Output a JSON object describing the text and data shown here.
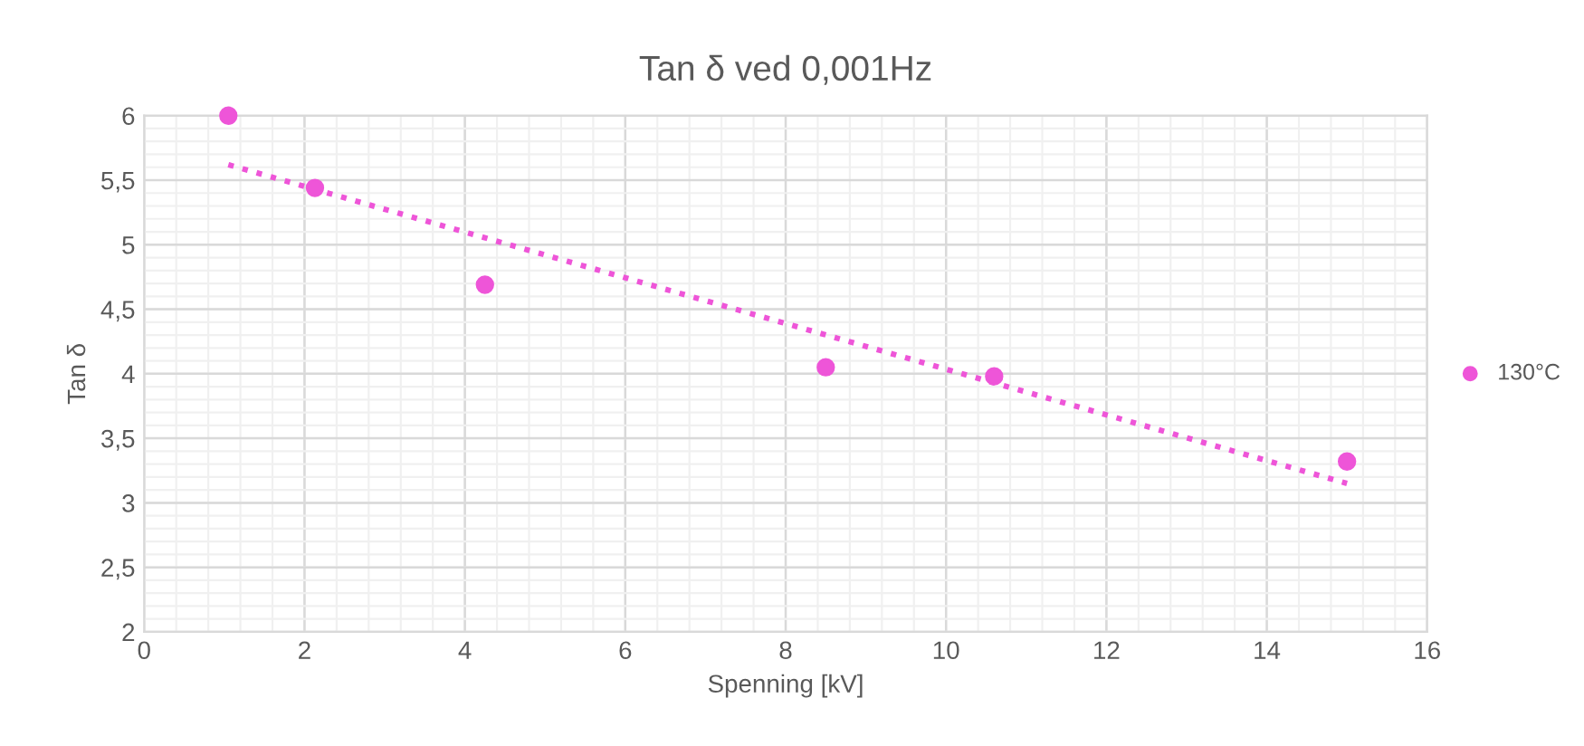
{
  "chart_data": {
    "type": "scatter",
    "title": "Tan δ ved 0,001Hz",
    "xlabel": "Spenning [kV]",
    "ylabel": "Tan δ",
    "series": [
      {
        "name": "130°C",
        "color": "#ee55d8",
        "x": [
          1.05,
          2.13,
          4.25,
          8.5,
          10.6,
          15
        ],
        "values": [
          6.0,
          5.44,
          4.69,
          4.05,
          3.98,
          3.32
        ]
      },
      {
        "type": "line",
        "color": "#ee55d8",
        "line_style": "dotted",
        "marker": "none",
        "x": [
          1.05,
          15
        ],
        "values": [
          5.62,
          3.15
        ]
      }
    ],
    "xlim": [
      0,
      16
    ],
    "xticks": [
      0,
      2,
      4,
      6,
      8,
      10,
      12,
      14,
      16
    ],
    "ylim": [
      2,
      6
    ],
    "yticks": [
      2,
      {
        "value": 2.5,
        "label": "2,5"
      },
      3,
      {
        "value": 3.5,
        "label": "3,5"
      },
      4,
      {
        "value": 4.5,
        "label": "4,5"
      },
      5,
      {
        "value": 5.5,
        "label": "5,5"
      },
      6
    ],
    "grid": true,
    "legend": "right",
    "marker": "circle"
  }
}
